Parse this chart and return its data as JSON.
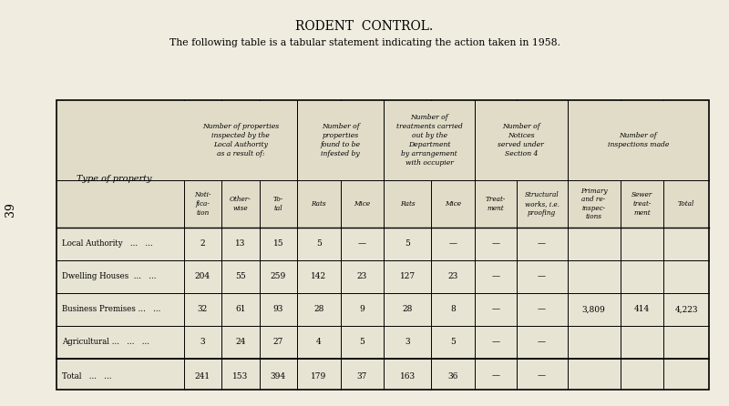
{
  "title": "RODENT  CONTROL.",
  "subtitle": "The following table is a tabular statement indicating the action taken in 1958.",
  "page_number": "39",
  "bg_color": "#f0ece0",
  "table_bg": "#e8e4d4",
  "header_bg": "#e0dcc8",
  "col_headers_sub": [
    "Noti-\nfica-\ntion",
    "Other-\nwise",
    "To-\ntal",
    "Rats",
    "Mice",
    "Rats",
    "Mice",
    "Treat-\nment",
    "Structural\nworks, i.e.\nproofing",
    "Primary\nand re-\ninspec-\ntions",
    "Sewer\ntreat-\nment",
    "Total"
  ],
  "row_label_header": "Type of property",
  "rows": [
    {
      "label": "Local Authority   ...   ...",
      "values": [
        "2",
        "13",
        "15",
        "5",
        "—",
        "5",
        "—",
        "—",
        "—",
        "",
        "",
        ""
      ]
    },
    {
      "label": "Dwelling Houses  ...   ...",
      "values": [
        "204",
        "55",
        "259",
        "142",
        "23",
        "127",
        "23",
        "—",
        "—",
        "",
        "",
        ""
      ]
    },
    {
      "label": "Business Premises ...   ...",
      "values": [
        "32",
        "61",
        "93",
        "28",
        "9",
        "28",
        "8",
        "—",
        "—",
        "3,809",
        "414",
        "4,223"
      ]
    },
    {
      "label": "Agricultural ...   ...   ...",
      "values": [
        "3",
        "24",
        "27",
        "4",
        "5",
        "3",
        "5",
        "—",
        "—",
        "",
        "",
        ""
      ]
    }
  ],
  "total_row": {
    "label": "Total   ...   ...",
    "values": [
      "241",
      "153",
      "394",
      "179",
      "37",
      "163",
      "36",
      "—",
      "—",
      "",
      "",
      ""
    ]
  },
  "span_top_configs": [
    [
      1,
      3,
      "Number of properties\ninspected by the\nLocal Authority\nas a result of:"
    ],
    [
      4,
      2,
      "Number of\nproperties\nfound to be\ninfested by"
    ],
    [
      6,
      2,
      "Number of\ntreatments carried\nout by the\nDepartment\nby arrangement\nwith occupier"
    ],
    [
      8,
      2,
      "Number of\nNotices\nserved under\nSection 4"
    ],
    [
      10,
      3,
      "Number of\ninspections made"
    ]
  ]
}
